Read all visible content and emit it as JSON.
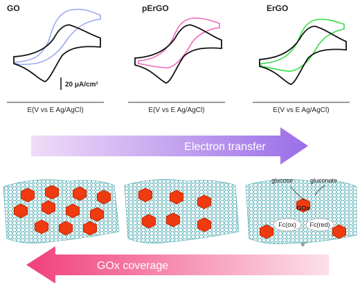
{
  "panels": [
    {
      "label": "GO",
      "axis_label": "E(V vs E Ag/AgCl)"
    },
    {
      "label": "pErGO",
      "axis_label": "E(V vs E Ag/AgCl)"
    },
    {
      "label": "ErGO",
      "axis_label": "E(V vs E Ag/AgCl)"
    }
  ],
  "scale_bar": "20 μA/cm²",
  "arrow_top": "Electron transfer",
  "reaction": {
    "substrate": "glucose",
    "product": "gluconate",
    "enzyme": "GOx",
    "fc_ox": "Fc(ox)",
    "fc_red": "Fc(red)",
    "electron": "e⁻"
  },
  "arrow_bottom": "GOx coverage"
}
